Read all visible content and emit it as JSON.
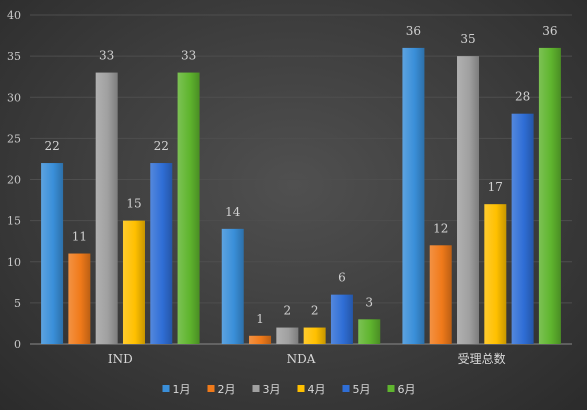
{
  "chart_data": {
    "type": "bar",
    "categories": [
      "IND",
      "NDA",
      "受理总数"
    ],
    "series": [
      {
        "name": "1月",
        "values": [
          22,
          14,
          36
        ],
        "color": "#3a8fd9"
      },
      {
        "name": "2月",
        "values": [
          11,
          1,
          12
        ],
        "color": "#f07a1a"
      },
      {
        "name": "3月",
        "values": [
          33,
          2,
          35
        ],
        "color": "#a0a0a0"
      },
      {
        "name": "4月",
        "values": [
          15,
          2,
          17
        ],
        "color": "#ffc000"
      },
      {
        "name": "5月",
        "values": [
          22,
          6,
          28
        ],
        "color": "#2f6ed6"
      },
      {
        "name": "6月",
        "values": [
          33,
          3,
          36
        ],
        "color": "#5fb52e"
      }
    ],
    "ylim": [
      0,
      40
    ],
    "yticks": [
      0,
      5,
      10,
      15,
      20,
      25,
      30,
      35,
      40
    ],
    "grid": true,
    "legend_position": "bottom",
    "data_labels": true
  }
}
